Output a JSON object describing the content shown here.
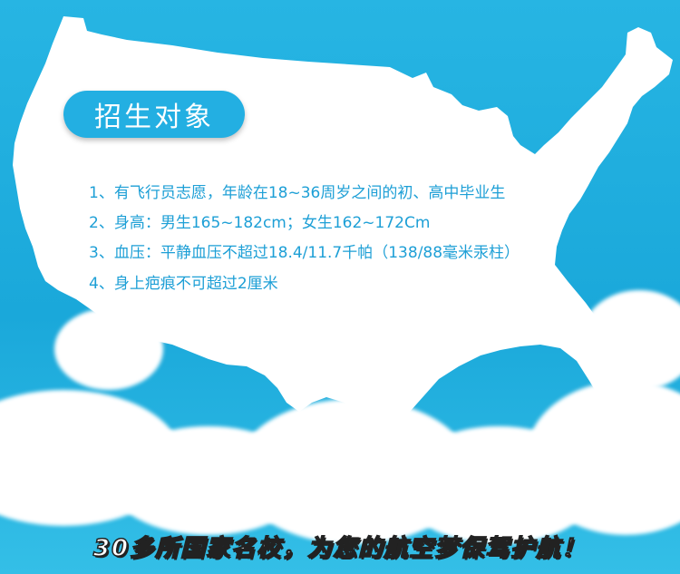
{
  "title": "招生对象",
  "requirements": [
    "1、有飞行员志愿，年龄在18~36周岁之间的初、高中毕业生",
    "2、身高：男生165~182cm；女生162~172Cm",
    "3、血压：平静血压不超过18.4/11.7千帕（138/88毫米汞柱）",
    "4、身上疤痕不可超过2厘米"
  ],
  "banner": "30多所国家名校，为您的航空梦保驾护航！",
  "colors": {
    "sky": "#27b5e3",
    "pill": "#23afe2",
    "text_blue": "#1d9fd6",
    "map": "#ffffff"
  }
}
